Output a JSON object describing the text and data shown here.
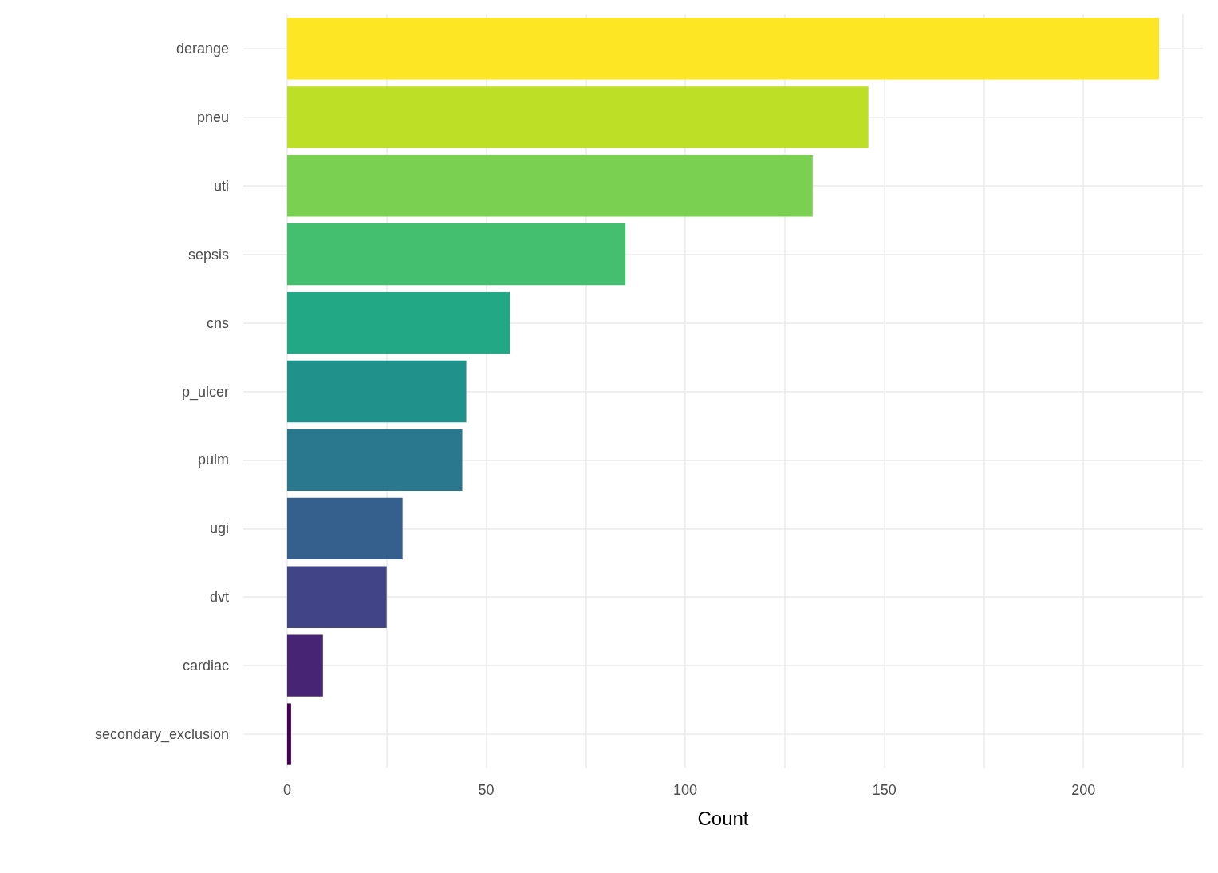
{
  "chart_data": {
    "type": "bar",
    "orientation": "horizontal",
    "xlabel": "Count",
    "categories": [
      "derange",
      "pneu",
      "uti",
      "sepsis",
      "cns",
      "p_ulcer",
      "pulm",
      "ugi",
      "dvt",
      "cardiac",
      "secondary_exclusion"
    ],
    "values": [
      219,
      146,
      132,
      85,
      56,
      45,
      44,
      29,
      25,
      9,
      1
    ],
    "colors": [
      "#fde725",
      "#bddf26",
      "#7ad151",
      "#44bf70",
      "#22a884",
      "#21918c",
      "#2a788e",
      "#355f8d",
      "#414487",
      "#482475",
      "#440154"
    ],
    "xlim": [
      -11,
      230
    ],
    "xticks": [
      0,
      {
        "value": 25,
        "label": null
      },
      50,
      {
        "value": 75,
        "label": null
      },
      100,
      {
        "value": 125,
        "label": null
      },
      150,
      {
        "value": 175,
        "label": null
      },
      200,
      {
        "value": 225,
        "label": null
      }
    ],
    "grid": true
  }
}
